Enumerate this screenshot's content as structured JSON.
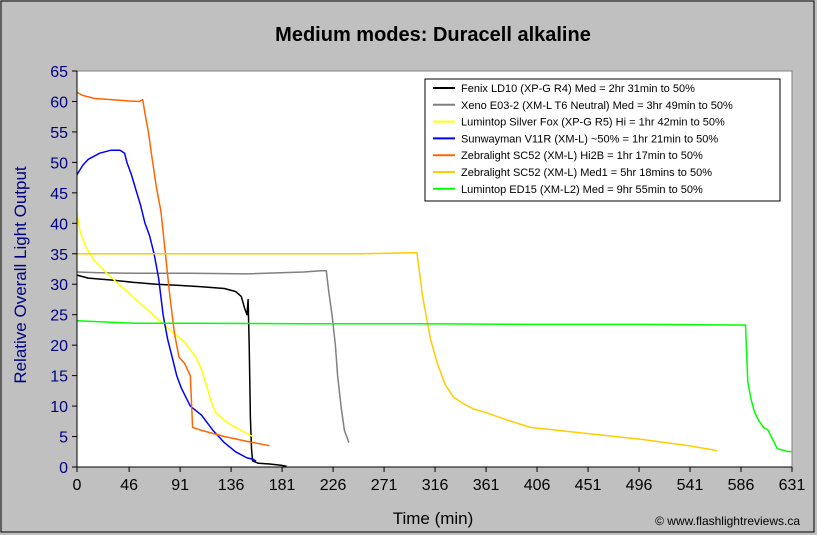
{
  "chart_data": {
    "type": "line",
    "title": "Medium modes: Duracell alkaline",
    "xlabel": "Time (min)",
    "ylabel": "Relative Overall Light Output",
    "xlim": [
      0,
      631
    ],
    "ylim": [
      0,
      65
    ],
    "xticks": [
      0,
      46,
      91,
      136,
      181,
      226,
      271,
      316,
      361,
      406,
      451,
      496,
      541,
      586,
      631
    ],
    "yticks": [
      0,
      5,
      10,
      15,
      20,
      25,
      30,
      35,
      40,
      45,
      50,
      55,
      60,
      65
    ],
    "grid": false,
    "legend_position": "top-right",
    "credit": "© www.flashlightreviews.ca",
    "series": [
      {
        "name": "Fenix LD10 (XP-G R4) Med = 2hr 31min to 50%",
        "color": "#000000",
        "x": [
          0,
          10,
          30,
          50,
          70,
          90,
          110,
          130,
          140,
          145,
          148,
          150,
          151,
          152,
          153,
          154,
          155,
          160,
          170,
          180,
          185
        ],
        "y": [
          31.5,
          31,
          30.7,
          30.3,
          30,
          29.8,
          29.6,
          29.3,
          28.8,
          28,
          26,
          25,
          27.5,
          20,
          8,
          3,
          1,
          0.6,
          0.5,
          0.3,
          0.1
        ]
      },
      {
        "name": "Xeno E03-2 (XM-L T6 Neutral) Med = 3hr 49min to 50%",
        "color": "#808080",
        "x": [
          0,
          20,
          50,
          100,
          150,
          200,
          215,
          220,
          222,
          225,
          228,
          230,
          233,
          236,
          240
        ],
        "y": [
          32,
          31.9,
          31.8,
          31.8,
          31.7,
          32,
          32.2,
          32.2,
          29,
          25,
          20,
          15,
          10,
          6,
          4
        ]
      },
      {
        "name": "Lumintop Silver Fox (XP-G R5) Hi = 1hr 42min to 50%",
        "color": "#ffff00",
        "x": [
          0,
          3,
          8,
          15,
          25,
          40,
          55,
          70,
          85,
          95,
          105,
          110,
          115,
          118,
          122,
          128,
          135,
          145,
          155
        ],
        "y": [
          41.5,
          38.5,
          36,
          34,
          32,
          29.5,
          27,
          24.5,
          22,
          20.5,
          18,
          16,
          13,
          11,
          9,
          8,
          7,
          6,
          5
        ]
      },
      {
        "name": "Sunwayman V11R (XM-L) ~50% = 1hr 21min to 50%",
        "color": "#0000ff",
        "x": [
          0,
          5,
          10,
          20,
          30,
          38,
          42,
          44,
          48,
          52,
          56,
          60,
          64,
          68,
          72,
          76,
          80,
          84,
          88,
          92,
          100,
          110,
          120,
          130,
          140,
          150,
          155,
          158
        ],
        "y": [
          48,
          49.5,
          50.5,
          51.5,
          52,
          52,
          51.5,
          50,
          48,
          45.5,
          43,
          40,
          38,
          35,
          31,
          25,
          21,
          18,
          15,
          13,
          10,
          8.5,
          6,
          4,
          2.5,
          1.5,
          1.3,
          1
        ]
      },
      {
        "name": "Zebralight SC52 (XM-L) Hi2B = 1hr 17min to 50%",
        "color": "#ff6600",
        "x": [
          0,
          5,
          15,
          30,
          45,
          55,
          58,
          60,
          63,
          66,
          70,
          74,
          78,
          82,
          86,
          90,
          95,
          100,
          101,
          102,
          110,
          130,
          150,
          170
        ],
        "y": [
          61.5,
          61,
          60.5,
          60.3,
          60.1,
          60,
          60.3,
          58,
          55,
          51,
          46,
          42,
          35,
          28,
          22,
          18,
          17,
          15,
          11,
          6.5,
          6,
          5,
          4.2,
          3.5
        ]
      },
      {
        "name": "Zebralight SC52 (XM-L) Med1 = 5hr 18mins to 50%",
        "color": "#ffcc00",
        "x": [
          0,
          50,
          100,
          150,
          200,
          250,
          300,
          303,
          305,
          308,
          312,
          318,
          325,
          332,
          340,
          350,
          360,
          375,
          400,
          450,
          500,
          540,
          565
        ],
        "y": [
          35,
          35,
          35,
          35,
          35,
          35,
          35.2,
          31,
          28,
          25,
          21,
          17,
          13.5,
          11.5,
          10.5,
          9.5,
          9,
          8,
          6.5,
          5.5,
          4.5,
          3.5,
          2.7
        ]
      },
      {
        "name": "Lumintop ED15 (XM-L2) Med = 9hr 55min to 50%",
        "color": "#00ff00",
        "x": [
          0,
          50,
          100,
          200,
          300,
          400,
          500,
          580,
          590,
          592,
          595,
          598,
          602,
          606,
          610,
          614,
          618,
          622,
          626,
          631
        ],
        "y": [
          24,
          23.6,
          23.6,
          23.5,
          23.5,
          23.4,
          23.4,
          23.3,
          23.3,
          14,
          11,
          9,
          7.5,
          6.5,
          6,
          4.5,
          3,
          2.8,
          2.6,
          2.5
        ]
      }
    ]
  }
}
